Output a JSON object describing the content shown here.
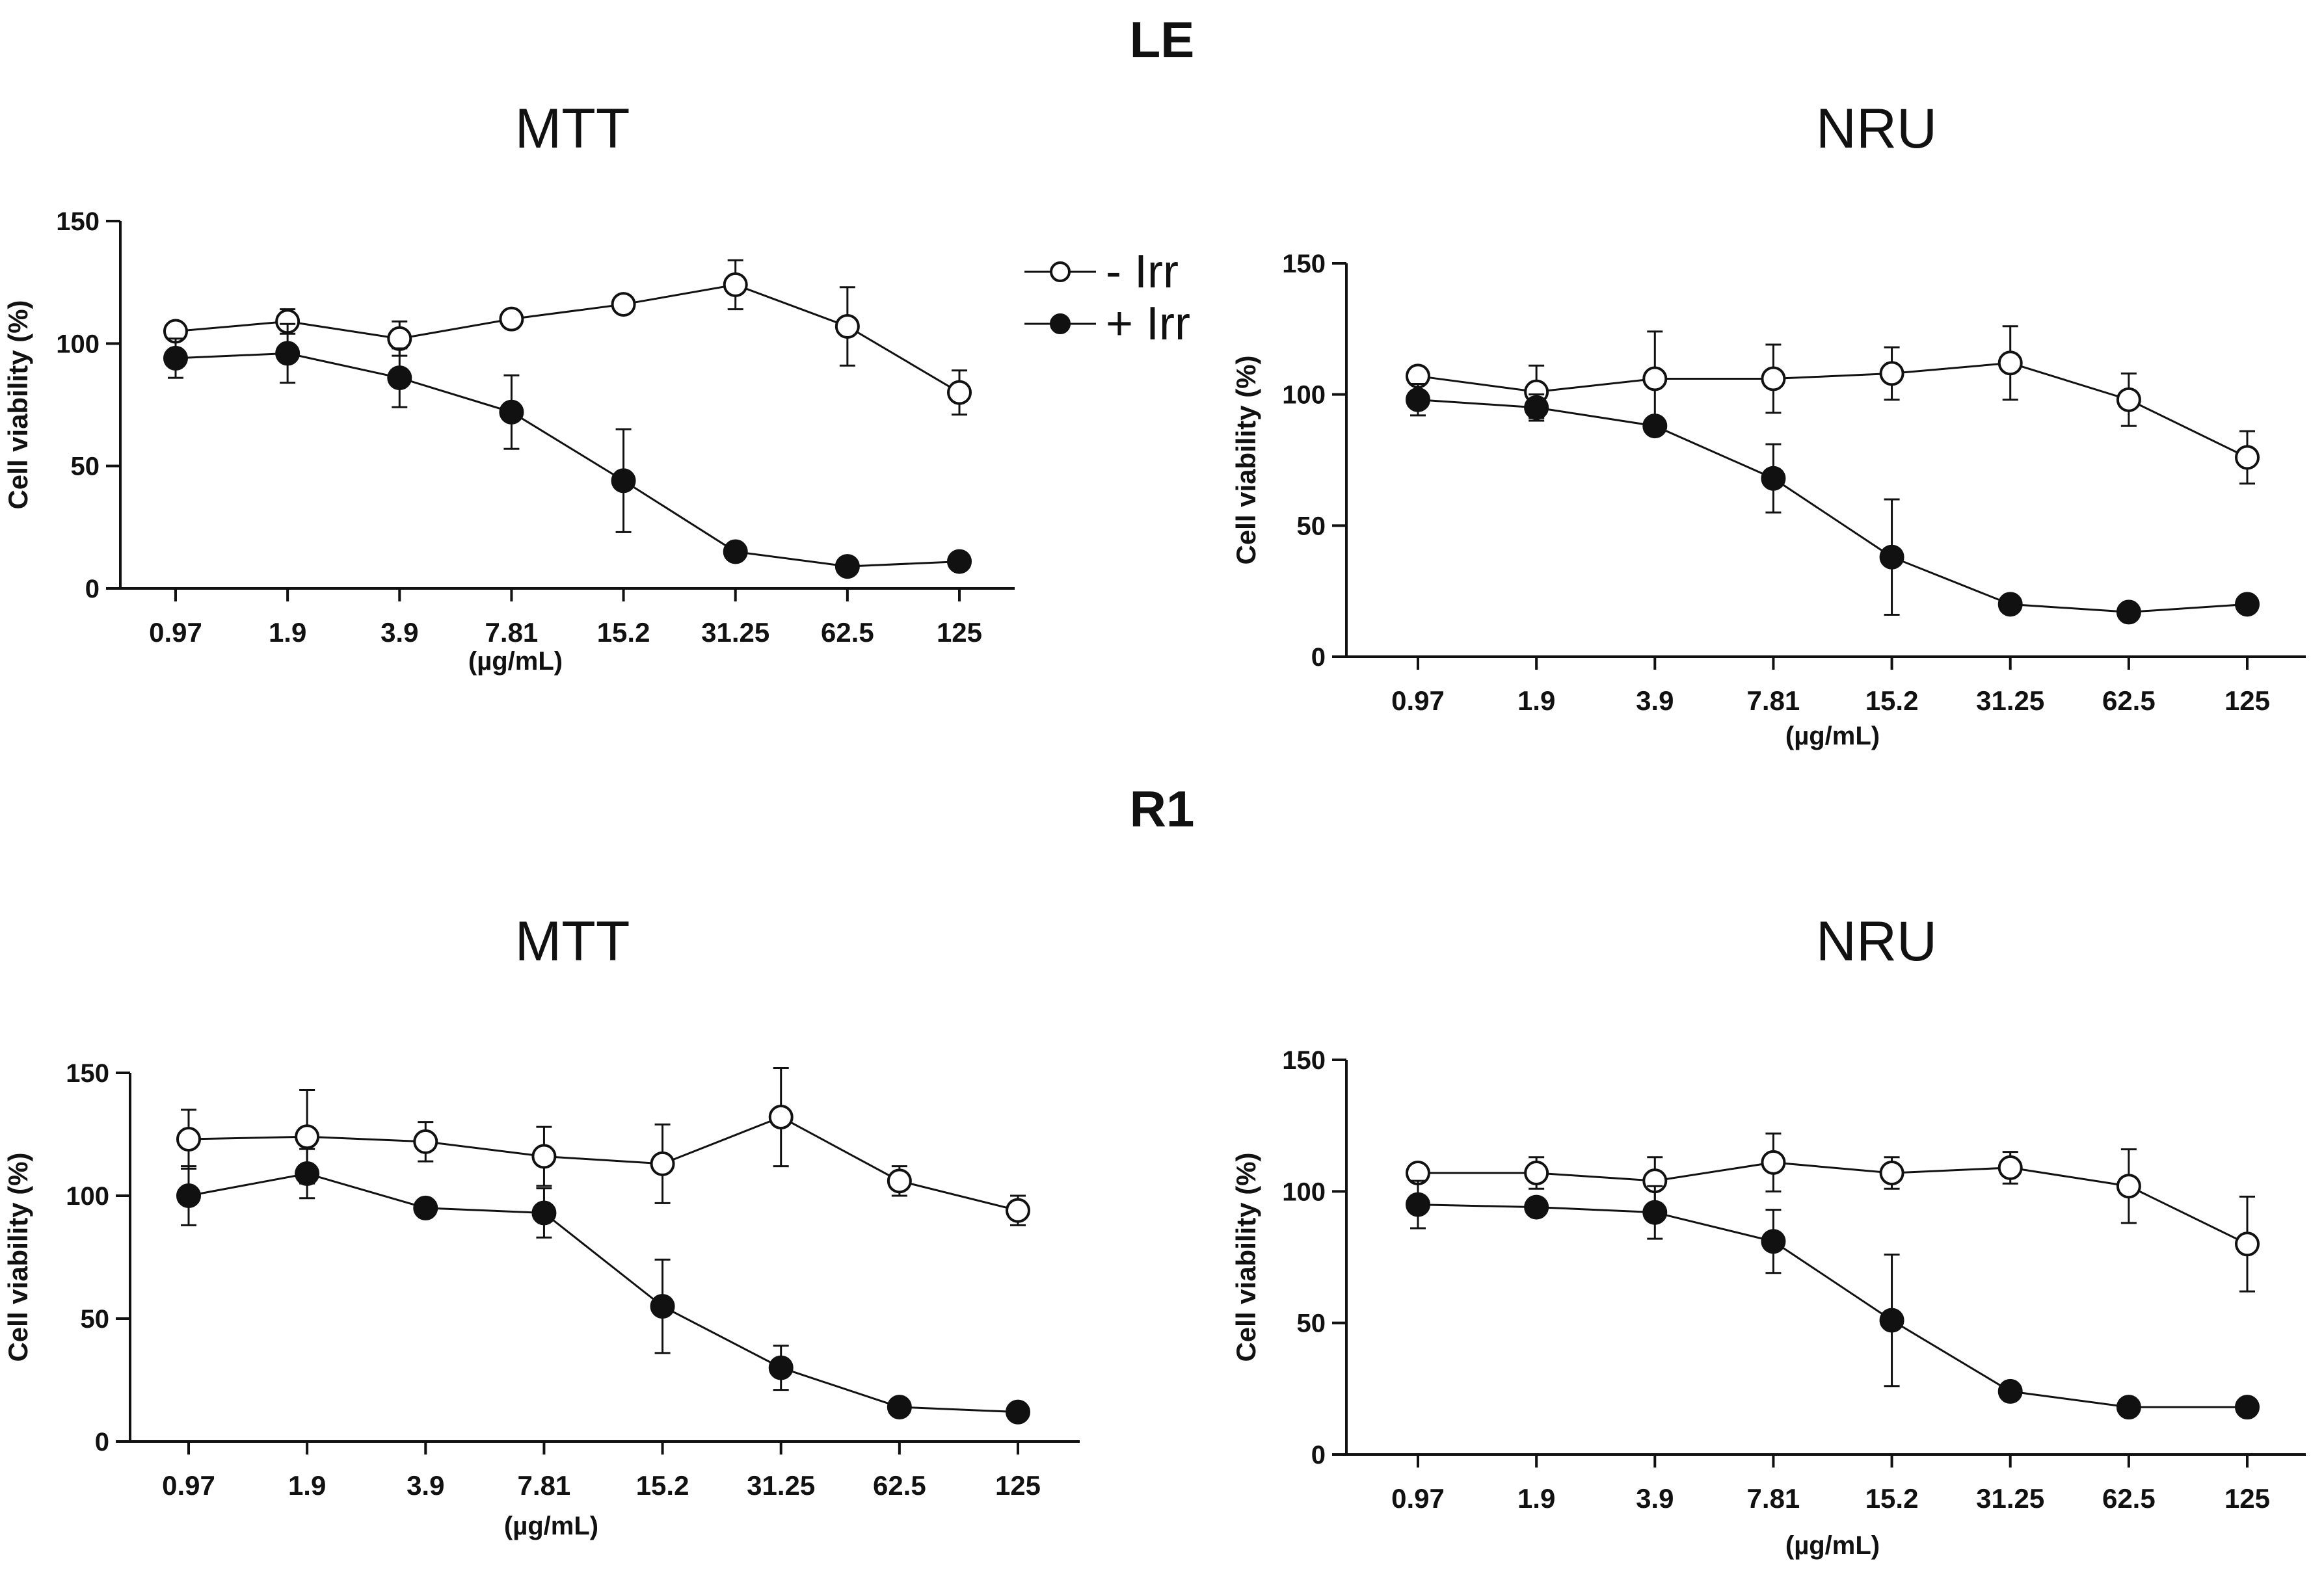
{
  "sections": [
    {
      "title": "LE",
      "panels": [
        "MTT",
        "NRU"
      ]
    },
    {
      "title": "R1",
      "panels": [
        "MTT",
        "NRU"
      ]
    }
  ],
  "legend": [
    {
      "label": "- Irr",
      "marker": "open-circle"
    },
    {
      "label": "+ Irr",
      "marker": "filled-circle"
    }
  ],
  "colors": {
    "line": "#111111",
    "open_fill": "#ffffff",
    "filled_fill": "#111111"
  },
  "chart_data": [
    {
      "type": "line",
      "title": "MTT",
      "group": "LE",
      "xlabel": "(µg/mL)",
      "ylabel": "Cell viability (%)",
      "categories": [
        "0.97",
        "1.9",
        "3.9",
        "7.81",
        "15.2",
        "31.25",
        "62.5",
        "125"
      ],
      "ylim": [
        0,
        150
      ],
      "yticks": [
        0,
        50,
        100,
        150
      ],
      "grid": false,
      "series": [
        {
          "name": "- Irr",
          "marker": "open",
          "values": [
            105,
            109,
            102,
            110,
            116,
            124,
            107,
            80
          ],
          "errors": [
            0,
            5,
            7,
            3,
            0,
            10,
            16,
            9
          ]
        },
        {
          "name": "+ Irr",
          "marker": "filled",
          "values": [
            94,
            96,
            86,
            72,
            44,
            15,
            9,
            11
          ],
          "errors": [
            8,
            12,
            12,
            15,
            21,
            0,
            0,
            0
          ]
        }
      ]
    },
    {
      "type": "line",
      "title": "NRU",
      "group": "LE",
      "xlabel": "(µg/mL)",
      "ylabel": "Cell viability (%)",
      "categories": [
        "0.97",
        "1.9",
        "3.9",
        "7.81",
        "15.2",
        "31.25",
        "62.5",
        "125"
      ],
      "ylim": [
        0,
        150
      ],
      "yticks": [
        0,
        50,
        100,
        150
      ],
      "grid": false,
      "series": [
        {
          "name": "- Irr",
          "marker": "open",
          "values": [
            107,
            101,
            106,
            106,
            108,
            112,
            98,
            76
          ],
          "errors": [
            0,
            10,
            18,
            13,
            10,
            14,
            10,
            10
          ]
        },
        {
          "name": "+ Irr",
          "marker": "filled",
          "values": [
            98,
            95,
            88,
            68,
            38,
            20,
            17,
            20
          ],
          "errors": [
            6,
            5,
            0,
            13,
            22,
            0,
            0,
            0
          ]
        }
      ]
    },
    {
      "type": "line",
      "title": "MTT",
      "group": "R1",
      "xlabel": "(µg/mL)",
      "ylabel": "Cell viability (%)",
      "categories": [
        "0.97",
        "1.9",
        "3.9",
        "7.81",
        "15.2",
        "31.25",
        "62.5",
        "125"
      ],
      "ylim": [
        0,
        150
      ],
      "yticks": [
        0,
        50,
        100,
        150
      ],
      "grid": false,
      "series": [
        {
          "name": "- Irr",
          "marker": "open",
          "values": [
            123,
            124,
            122,
            116,
            113,
            132,
            106,
            94
          ],
          "errors": [
            12,
            19,
            8,
            12,
            16,
            20,
            6,
            6
          ]
        },
        {
          "name": "+ Irr",
          "marker": "filled",
          "values": [
            100,
            109,
            95,
            93,
            55,
            30,
            14,
            12
          ],
          "errors": [
            12,
            10,
            3,
            10,
            19,
            9,
            0,
            0
          ]
        }
      ]
    },
    {
      "type": "line",
      "title": "NRU",
      "group": "R1",
      "xlabel": "(µg/mL)",
      "ylabel": "Cell viability (%)",
      "categories": [
        "0.97",
        "1.9",
        "3.9",
        "7.81",
        "15.2",
        "31.25",
        "62.5",
        "125"
      ],
      "ylim": [
        0,
        150
      ],
      "yticks": [
        0,
        50,
        100,
        150
      ],
      "grid": false,
      "series": [
        {
          "name": "- Irr",
          "marker": "open",
          "values": [
            107,
            107,
            104,
            111,
            107,
            109,
            102,
            80
          ],
          "errors": [
            0,
            6,
            9,
            11,
            6,
            6,
            14,
            18
          ]
        },
        {
          "name": "+ Irr",
          "marker": "filled",
          "values": [
            95,
            94,
            92,
            81,
            51,
            24,
            18,
            18
          ],
          "errors": [
            9,
            0,
            10,
            12,
            25,
            0,
            0,
            0
          ]
        }
      ]
    }
  ]
}
